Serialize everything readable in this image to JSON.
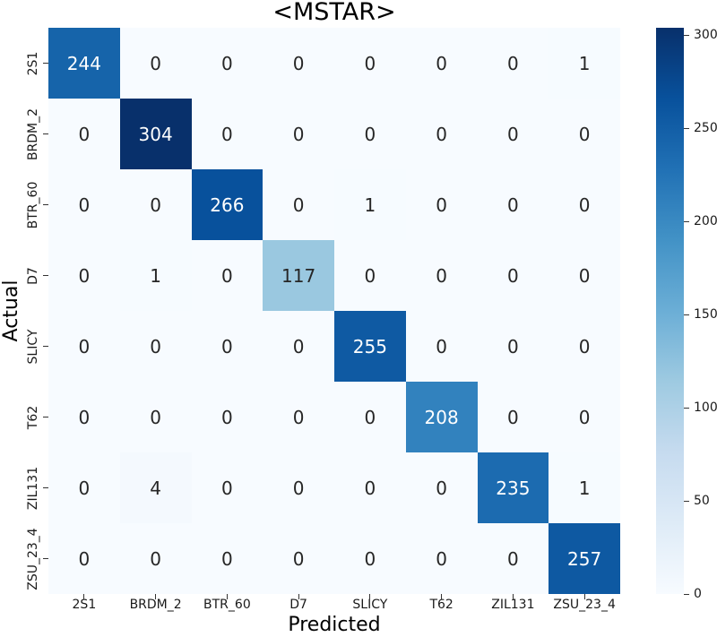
{
  "figure": {
    "background_color": "#ffffff",
    "text_color": "#1a1a1a"
  },
  "chart_data": {
    "type": "heatmap",
    "title": "<MSTAR>",
    "xlabel": "Predicted",
    "ylabel": "Actual",
    "x_categories": [
      "2S1",
      "BRDM_2",
      "BTR_60",
      "D7",
      "SLICY",
      "T62",
      "ZIL131",
      "ZSU_23_4"
    ],
    "y_categories": [
      "2S1",
      "BRDM_2",
      "BTR_60",
      "D7",
      "SLICY",
      "T62",
      "ZIL131",
      "ZSU_23_4"
    ],
    "matrix": [
      [
        244,
        0,
        0,
        0,
        0,
        0,
        0,
        1
      ],
      [
        0,
        304,
        0,
        0,
        0,
        0,
        0,
        0
      ],
      [
        0,
        0,
        266,
        0,
        1,
        0,
        0,
        0
      ],
      [
        0,
        1,
        0,
        117,
        0,
        0,
        0,
        0
      ],
      [
        0,
        0,
        0,
        0,
        255,
        0,
        0,
        0
      ],
      [
        0,
        0,
        0,
        0,
        0,
        208,
        0,
        0
      ],
      [
        0,
        4,
        0,
        0,
        0,
        0,
        235,
        1
      ],
      [
        0,
        0,
        0,
        0,
        0,
        0,
        0,
        257
      ]
    ],
    "vmin": 0,
    "vmax": 304,
    "colormap": "Blues",
    "colormap_anchors": [
      {
        "pos": 0.0,
        "color": "#f7fbff"
      },
      {
        "pos": 0.125,
        "color": "#deebf7"
      },
      {
        "pos": 0.25,
        "color": "#c6dbef"
      },
      {
        "pos": 0.375,
        "color": "#9ecae1"
      },
      {
        "pos": 0.5,
        "color": "#6baed6"
      },
      {
        "pos": 0.625,
        "color": "#4292c6"
      },
      {
        "pos": 0.75,
        "color": "#2171b5"
      },
      {
        "pos": 0.875,
        "color": "#08519c"
      },
      {
        "pos": 1.0,
        "color": "#08306b"
      }
    ],
    "colorbar_ticks": [
      "0",
      "50",
      "100",
      "150",
      "200",
      "250",
      "300"
    ],
    "annot_color_dark": "#262626",
    "annot_color_light": "#ffffff",
    "legend_position": "right-colorbar",
    "grid": false
  }
}
